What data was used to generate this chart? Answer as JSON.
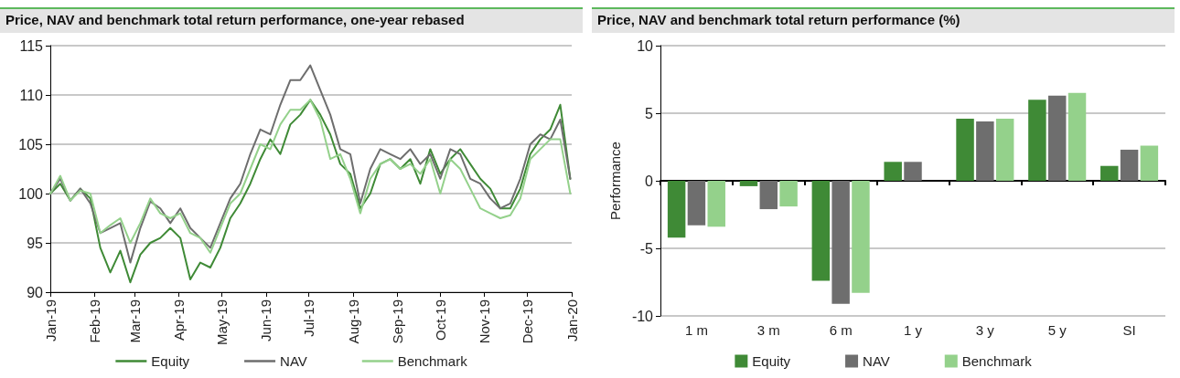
{
  "chart_data": [
    {
      "type": "line",
      "title": "Price, NAV and benchmark total return performance, one-year rebased",
      "x": [
        "2019-01-01",
        "2019-01-08",
        "2019-01-15",
        "2019-01-22",
        "2019-01-29",
        "2019-02-05",
        "2019-02-12",
        "2019-02-19",
        "2019-02-26",
        "2019-03-05",
        "2019-03-12",
        "2019-03-19",
        "2019-03-26",
        "2019-04-02",
        "2019-04-09",
        "2019-04-16",
        "2019-04-23",
        "2019-04-30",
        "2019-05-07",
        "2019-05-14",
        "2019-05-21",
        "2019-05-28",
        "2019-06-04",
        "2019-06-11",
        "2019-06-18",
        "2019-06-25",
        "2019-07-02",
        "2019-07-09",
        "2019-07-16",
        "2019-07-23",
        "2019-07-30",
        "2019-08-06",
        "2019-08-13",
        "2019-08-20",
        "2019-08-27",
        "2019-09-03",
        "2019-09-10",
        "2019-09-17",
        "2019-09-24",
        "2019-10-01",
        "2019-10-08",
        "2019-10-15",
        "2019-10-22",
        "2019-10-29",
        "2019-11-05",
        "2019-11-12",
        "2019-11-19",
        "2019-11-26",
        "2019-12-03",
        "2019-12-10",
        "2019-12-17",
        "2019-12-24",
        "2019-12-31"
      ],
      "series": [
        {
          "name": "Equity",
          "color": "#3f8a36",
          "values": [
            100,
            101,
            99.3,
            100.5,
            99.5,
            94.5,
            92,
            94.2,
            91,
            93.8,
            95,
            95.5,
            96.5,
            95.5,
            91.3,
            93,
            92.5,
            94.5,
            97.5,
            99,
            101,
            103.5,
            105.5,
            104,
            107,
            108,
            109.5,
            108,
            106,
            103,
            102,
            98.5,
            100,
            103,
            103.5,
            102.5,
            103.5,
            101,
            104.5,
            102,
            103.5,
            104.5,
            103,
            101.5,
            100.5,
            98.5,
            98.5,
            100.5,
            104,
            105.5,
            106.5,
            109,
            101.5
          ]
        },
        {
          "name": "NAV",
          "color": "#6e6e6e",
          "values": [
            100,
            101.5,
            99.3,
            100.5,
            99,
            96,
            96.5,
            97,
            93,
            96.5,
            99.2,
            98.5,
            97,
            98.5,
            96.5,
            95.5,
            94.5,
            97,
            99.5,
            101,
            104,
            106.5,
            106,
            109,
            111.5,
            111.5,
            113,
            110.5,
            108,
            104.5,
            104,
            99,
            102.5,
            104.5,
            104,
            103.5,
            104.5,
            103,
            104,
            101.5,
            104.5,
            104,
            101.5,
            101,
            99.5,
            98.5,
            99,
            101.5,
            105,
            106,
            105.5,
            107.5,
            101.5
          ]
        },
        {
          "name": "Benchmark",
          "color": "#94d18b",
          "values": [
            100,
            101.8,
            99.3,
            100.3,
            100,
            96,
            96.8,
            97.5,
            95,
            97,
            99.5,
            98,
            97.5,
            98,
            96,
            95.5,
            94,
            96.5,
            99,
            100,
            102.5,
            105,
            104.5,
            107,
            108.5,
            108.5,
            109.5,
            107.5,
            103.5,
            104,
            101.5,
            98,
            101.5,
            103,
            103.5,
            102.5,
            103,
            102,
            103.5,
            100,
            103.5,
            102.5,
            100.5,
            98.5,
            98,
            97.5,
            97.8,
            99.5,
            103.5,
            104.5,
            105.5,
            105.5,
            100
          ]
        }
      ],
      "xlim": [
        "2019-01-01",
        "2020-01-01"
      ],
      "xticks": [
        {
          "value": "2019-01-01",
          "label": "Jan-19"
        },
        {
          "value": "2019-02-01",
          "label": "Feb-19"
        },
        {
          "value": "2019-03-01",
          "label": "Mar-19"
        },
        {
          "value": "2019-04-01",
          "label": "Apr-19"
        },
        {
          "value": "2019-05-01",
          "label": "May-19"
        },
        {
          "value": "2019-06-01",
          "label": "Jun-19"
        },
        {
          "value": "2019-07-01",
          "label": "Jul-19"
        },
        {
          "value": "2019-08-01",
          "label": "Aug-19"
        },
        {
          "value": "2019-09-01",
          "label": "Sep-19"
        },
        {
          "value": "2019-10-01",
          "label": "Oct-19"
        },
        {
          "value": "2019-11-01",
          "label": "Nov-19"
        },
        {
          "value": "2019-12-01",
          "label": "Dec-19"
        },
        {
          "value": "2020-01-01",
          "label": "Jan-20"
        }
      ],
      "ylim": [
        90,
        115
      ],
      "yticks": [
        90,
        95,
        100,
        105,
        110,
        115
      ],
      "grid": "y",
      "legend": "bottom",
      "marker": "none",
      "line_style": "solid"
    },
    {
      "type": "bar",
      "title": "Price, NAV and benchmark total return performance (%)",
      "ylabel": "Performance",
      "categories": [
        "1 m",
        "3 m",
        "6 m",
        "1 y",
        "3 y",
        "5 y",
        "SI"
      ],
      "series": [
        {
          "name": "Equity",
          "color": "#3f8a36",
          "values": [
            -4.2,
            -0.4,
            -7.4,
            1.4,
            4.6,
            6.0,
            1.1
          ]
        },
        {
          "name": "NAV",
          "color": "#6e6e6e",
          "values": [
            -3.3,
            -2.1,
            -9.1,
            1.4,
            4.4,
            6.3,
            2.3
          ]
        },
        {
          "name": "Benchmark",
          "color": "#94d18b",
          "values": [
            -3.4,
            -1.9,
            -8.3,
            null,
            4.6,
            6.5,
            2.6
          ]
        }
      ],
      "ylim": [
        -10,
        10
      ],
      "yticks": [
        -10,
        -5,
        0,
        5,
        10
      ],
      "grid": "y",
      "legend": "bottom"
    }
  ]
}
